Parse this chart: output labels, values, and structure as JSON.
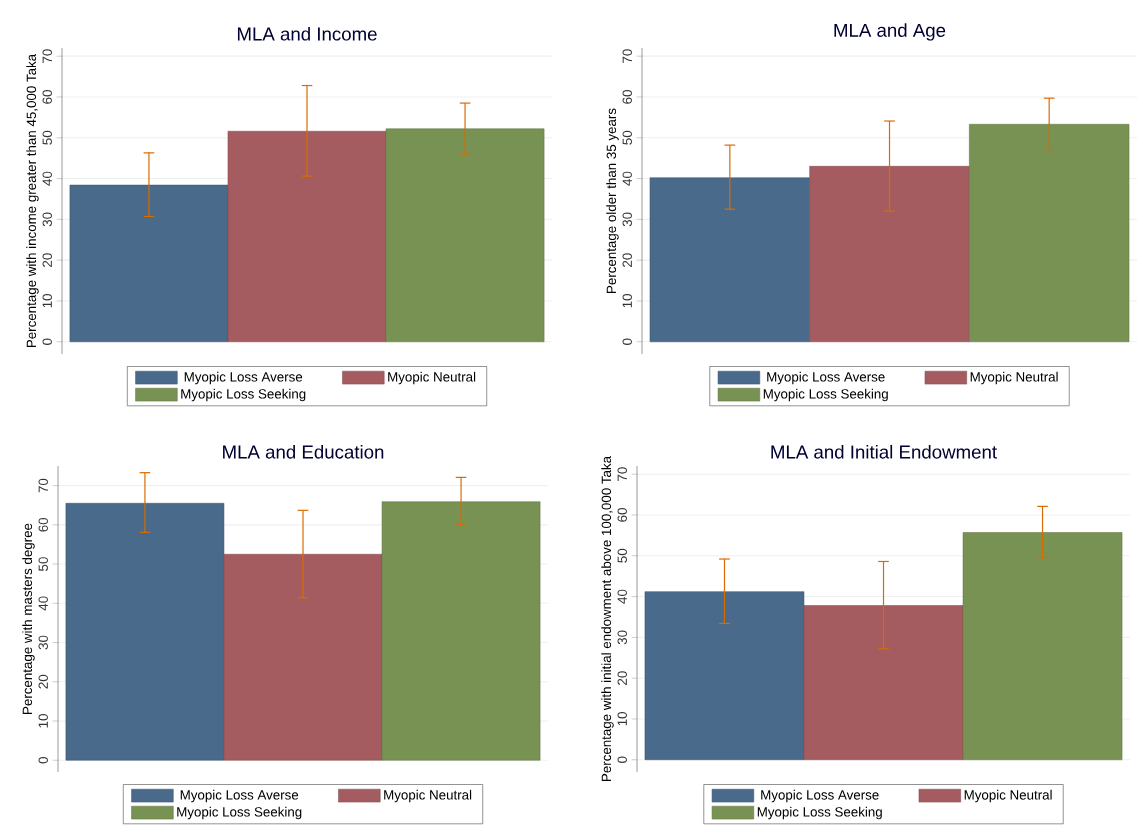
{
  "chart_data": [
    {
      "type": "bar",
      "title": "MLA and Income",
      "ylabel": "Percentage with income greater than 45,000 Taka",
      "categories": [
        null
      ],
      "ylim": [
        -3,
        72
      ],
      "yticks": [
        0,
        10,
        20,
        30,
        40,
        50,
        60,
        70
      ],
      "grid": "y",
      "legend": "bottom",
      "series": [
        {
          "name": "Myopic Loss Averse",
          "color": "#496a8b",
          "values": [
            38.4
          ],
          "errors": [
            [
              30.7,
              46.3
            ]
          ]
        },
        {
          "name": "Myopic Neutral",
          "color": "#a55c60",
          "values": [
            51.6
          ],
          "errors": [
            [
              40.6,
              62.8
            ]
          ]
        },
        {
          "name": "Myopic Loss Seeking",
          "color": "#789254",
          "values": [
            52.2
          ],
          "errors": [
            [
              46.0,
              58.5
            ]
          ]
        }
      ]
    },
    {
      "type": "bar",
      "title": "MLA and Age",
      "ylabel": "Percentage older than 35 years",
      "categories": [
        null
      ],
      "ylim": [
        -3,
        72
      ],
      "yticks": [
        0,
        10,
        20,
        30,
        40,
        50,
        60,
        70
      ],
      "grid": "y",
      "legend": "bottom",
      "series": [
        {
          "name": "Myopic Loss Averse",
          "color": "#496a8b",
          "values": [
            40.2
          ],
          "errors": [
            [
              32.5,
              48.2
            ]
          ]
        },
        {
          "name": "Myopic Neutral",
          "color": "#a55c60",
          "values": [
            43.0
          ],
          "errors": [
            [
              32.0,
              54.1
            ]
          ]
        },
        {
          "name": "Myopic Loss Seeking",
          "color": "#789254",
          "values": [
            53.3
          ],
          "errors": [
            [
              47.1,
              59.7
            ]
          ]
        }
      ]
    },
    {
      "type": "bar",
      "title": "MLA and Education",
      "ylabel": "Percentage with masters degree",
      "categories": [
        null
      ],
      "ylim": [
        -3,
        75
      ],
      "yticks": [
        0,
        10,
        20,
        30,
        40,
        50,
        60,
        70
      ],
      "grid": "y",
      "legend": "bottom",
      "series": [
        {
          "name": "Myopic Loss Averse",
          "color": "#496a8b",
          "values": [
            65.5
          ],
          "errors": [
            [
              58.1,
              73.3
            ]
          ]
        },
        {
          "name": "Myopic Neutral",
          "color": "#a55c60",
          "values": [
            52.5
          ],
          "errors": [
            [
              41.4,
              63.7
            ]
          ]
        },
        {
          "name": "Myopic Loss Seeking",
          "color": "#789254",
          "values": [
            65.9
          ],
          "errors": [
            [
              60.0,
              72.1
            ]
          ]
        }
      ]
    },
    {
      "type": "bar",
      "title": "MLA and Initial Endowment",
      "ylabel": "Percentage with initial endowment above 100,000 Taka",
      "categories": [
        null
      ],
      "ylim": [
        -3,
        72
      ],
      "yticks": [
        0,
        10,
        20,
        30,
        40,
        50,
        60,
        70
      ],
      "grid": "y",
      "legend": "bottom",
      "series": [
        {
          "name": "Myopic Loss Averse",
          "color": "#496a8b",
          "values": [
            41.2
          ],
          "errors": [
            [
              33.4,
              49.2
            ]
          ]
        },
        {
          "name": "Myopic Neutral",
          "color": "#a55c60",
          "values": [
            37.8
          ],
          "errors": [
            [
              27.2,
              48.6
            ]
          ]
        },
        {
          "name": "Myopic Loss Seeking",
          "color": "#789254",
          "values": [
            55.7
          ],
          "errors": [
            [
              49.5,
              62.1
            ]
          ]
        }
      ]
    }
  ]
}
